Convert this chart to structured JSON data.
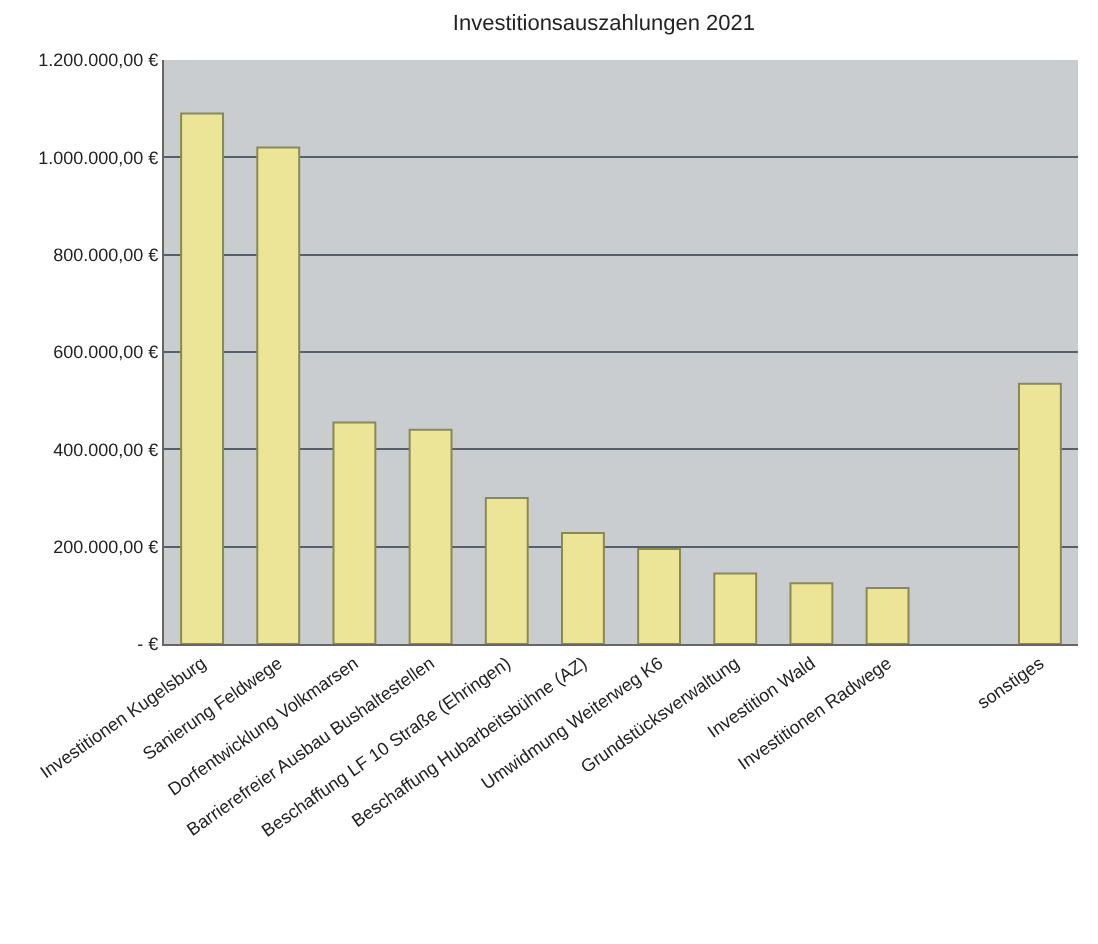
{
  "chart_data": {
    "type": "bar",
    "title": "Investitionsauszahlungen 2021",
    "categories": [
      "Investitionen Kugelsburg",
      "Sanierung Feldwege",
      "Dorfentwicklung Volkmarsen",
      "Barrierefreier Ausbau Bushaltestellen",
      "Beschaffung LF 10 Straße (Ehringen)",
      "Beschaffung Hubarbeitsbühne (AZ)",
      "Umwidmung Weiterweg K6",
      "Grundstücksverwaltung",
      "Investition Wald",
      "Investitionen Radwege",
      null,
      "sonstiges"
    ],
    "values": [
      1090000,
      1020000,
      455000,
      440000,
      300000,
      228000,
      195000,
      145000,
      125000,
      115000,
      null,
      535000
    ],
    "color": "#ece598",
    "ylim": [
      0,
      1200000
    ],
    "yticks": [
      {
        "value": 0,
        "label": "- €"
      },
      {
        "value": 200000,
        "label": "200.000,00 €"
      },
      {
        "value": 400000,
        "label": "400.000,00 €"
      },
      {
        "value": 600000,
        "label": "600.000,00 €"
      },
      {
        "value": 800000,
        "label": "800.000,00 €"
      },
      {
        "value": 1000000,
        "label": "1.000.000,00 €"
      },
      {
        "value": 1200000,
        "label": "1.200.000,00 €"
      }
    ],
    "grid": "y"
  }
}
